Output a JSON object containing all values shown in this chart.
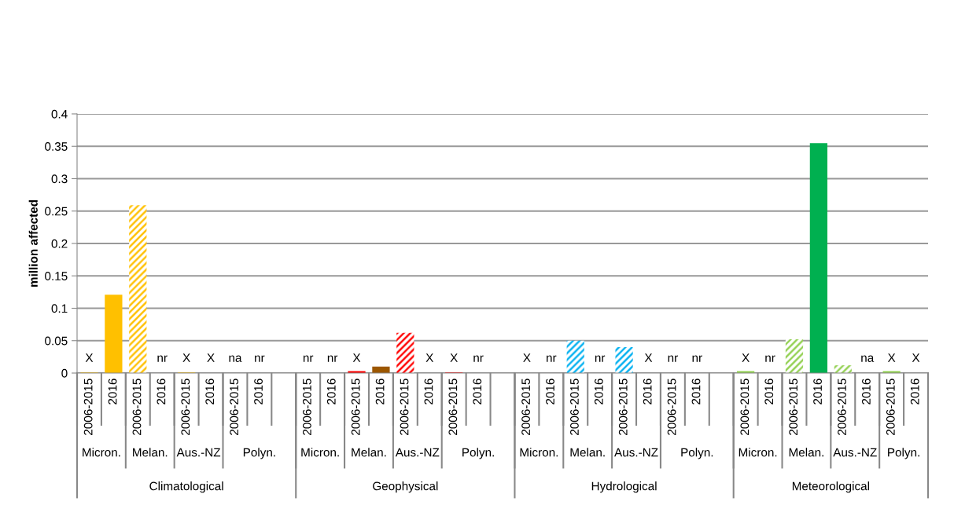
{
  "chart_data": {
    "type": "bar",
    "ylabel": "million affected",
    "categories": [
      "2006-2015",
      "2016",
      "2006-2015",
      "2016",
      "2006-2015",
      "2016",
      "2006-2015",
      "2016",
      null,
      "2006-2015",
      "2016",
      "2006-2015",
      "2016",
      "2006-2015",
      "2016",
      "2006-2015",
      "2016",
      null,
      "2006-2015",
      "2016",
      "2006-2015",
      "2016",
      "2006-2015",
      "2016",
      "2006-2015",
      "2016",
      null,
      "2006-2015",
      "2016",
      "2006-2015",
      "2016",
      "2006-2015",
      "2016",
      "2006-2015",
      "2016"
    ],
    "series": [
      {
        "values": [
          0.001,
          null,
          0.259,
          null,
          0.001,
          null,
          null,
          null,
          null,
          null,
          null,
          0.003,
          null,
          0.062,
          null,
          0.001,
          null,
          null,
          null,
          null,
          0.05,
          null,
          0.04,
          null,
          null,
          null,
          null,
          0.003,
          null,
          0.052,
          null,
          0.012,
          null,
          0.003,
          null
        ],
        "colors": [
          "#ffc000",
          null,
          "#ffc000",
          null,
          "#ffc000",
          null,
          "#ffc000",
          null,
          null,
          "#ff0000",
          null,
          "#ff0000",
          null,
          "#ff0000",
          null,
          "#ff0000",
          null,
          null,
          "#00b0f0",
          null,
          "#00b0f0",
          null,
          "#00b0f0",
          null,
          "#00b0f0",
          null,
          null,
          "#92d050",
          null,
          "#92d050",
          null,
          "#92d050",
          null,
          "#92d050",
          null
        ],
        "value_labels": [
          "X",
          null,
          null,
          null,
          "X",
          null,
          "na",
          null,
          null,
          "nr",
          null,
          "X",
          null,
          null,
          null,
          "X",
          null,
          null,
          "X",
          null,
          null,
          null,
          null,
          null,
          "nr",
          null,
          null,
          "X",
          null,
          null,
          null,
          null,
          null,
          "X",
          null
        ]
      },
      {
        "values": [
          null,
          0.121,
          null,
          null,
          null,
          null,
          null,
          null,
          null,
          null,
          null,
          null,
          0.01,
          null,
          null,
          null,
          null,
          null,
          null,
          null,
          null,
          null,
          null,
          null,
          null,
          null,
          null,
          null,
          null,
          null,
          0.355,
          null,
          null,
          null,
          null
        ],
        "colors": [
          null,
          "#ffc000",
          null,
          "#ffc000",
          null,
          "#ffc000",
          null,
          "#ffc000",
          null,
          null,
          "#9c5700",
          null,
          "#9c5700",
          null,
          "#9c5700",
          null,
          "#9c5700",
          null,
          null,
          "#00b0f0",
          null,
          "#00b0f0",
          null,
          "#00b0f0",
          null,
          "#00b0f0",
          null,
          null,
          "#00b050",
          null,
          "#00b050",
          null,
          "#00b050",
          null,
          "#00b050"
        ],
        "value_labels": [
          null,
          null,
          null,
          "nr",
          null,
          "X",
          null,
          "nr",
          null,
          null,
          "nr",
          null,
          null,
          null,
          "X",
          null,
          "nr",
          null,
          null,
          "nr",
          null,
          "nr",
          null,
          "X",
          null,
          "nr",
          null,
          null,
          "nr",
          null,
          null,
          null,
          "na",
          null,
          "X"
        ]
      }
    ],
    "annotations": [
      "Micron.",
      "Melan.",
      "Aus.-NZ",
      "Polyn.",
      "Climatological",
      "Micron.",
      "Melan.",
      "Aus.-NZ",
      "Polyn.",
      "Geophysical",
      "Micron.",
      "Melan.",
      "Aus.-NZ",
      "Polyn.",
      "Hydrological",
      "Micron.",
      "Melan.",
      "Aus.-NZ",
      "Polyn.",
      "Meteorological"
    ],
    "ylim": [
      0,
      0.4
    ],
    "yticks": [
      0,
      0.05,
      0.1,
      0.15,
      0.2,
      0.25,
      0.3,
      0.35,
      0.4
    ],
    "grid": "y"
  }
}
